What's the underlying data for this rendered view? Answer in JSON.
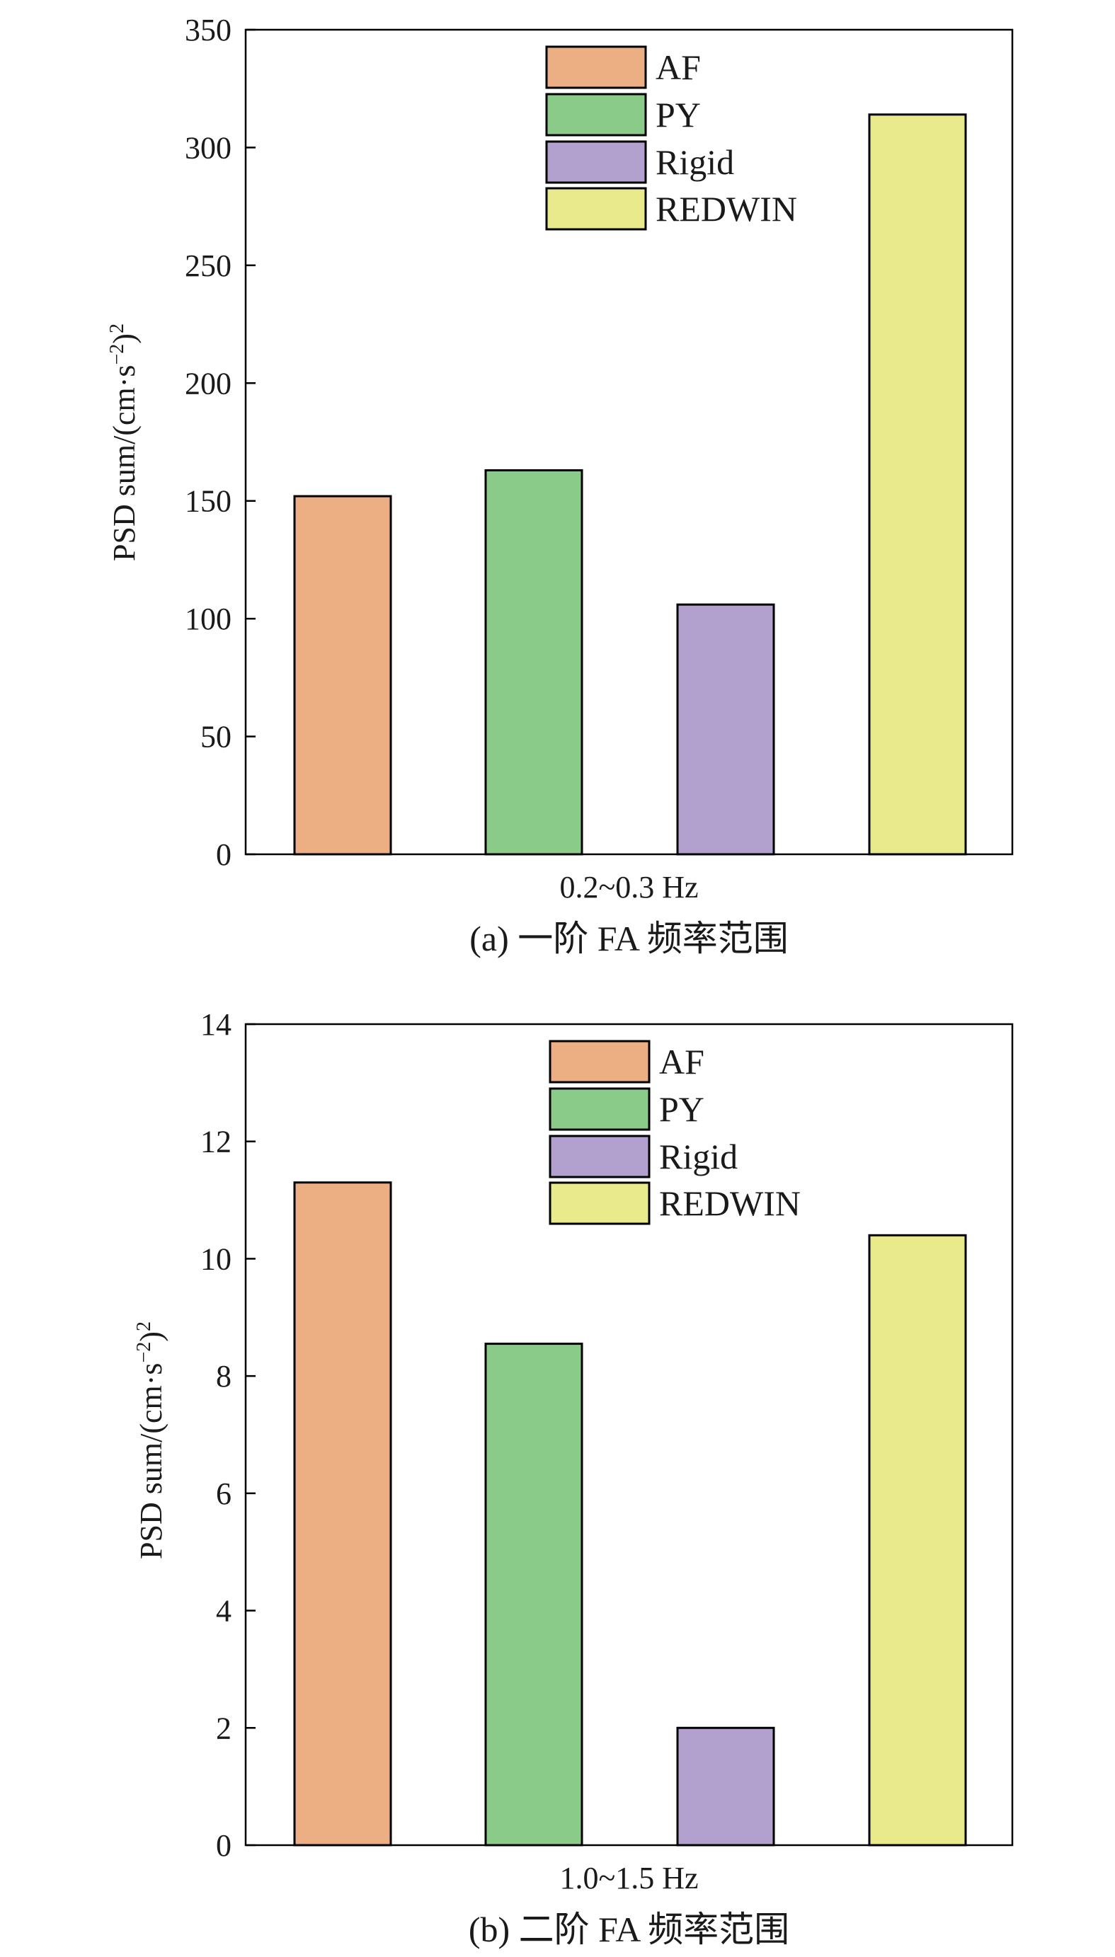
{
  "chart_data": [
    {
      "type": "bar",
      "panel_id": "a",
      "categories": [
        "AF",
        "PY",
        "Rigid",
        "REDWIN"
      ],
      "values": [
        152,
        163,
        106,
        314
      ],
      "colors": [
        "#ECAF84",
        "#8ACB8A",
        "#B2A0CE",
        "#E8EA8C"
      ],
      "xlabel": "0.2~0.3 Hz",
      "ylabel_main": "PSD sum/(cm·s",
      "ylabel_sup1": "−2",
      "ylabel_close": ")",
      "ylabel_sup2": "2",
      "ylim": [
        0,
        350
      ],
      "yticks": [
        "0",
        "50",
        "100",
        "150",
        "200",
        "250",
        "300",
        "350"
      ],
      "legend": [
        "AF",
        "PY",
        "Rigid",
        "REDWIN"
      ],
      "legend_position": "top-center",
      "grid": false,
      "caption": "(a) 一阶 FA 频率范围"
    },
    {
      "type": "bar",
      "panel_id": "b",
      "categories": [
        "AF",
        "PY",
        "Rigid",
        "REDWIN"
      ],
      "values": [
        11.3,
        8.55,
        2.0,
        10.4
      ],
      "colors": [
        "#ECAF84",
        "#8ACB8A",
        "#B2A0CE",
        "#E8EA8C"
      ],
      "xlabel": "1.0~1.5 Hz",
      "ylabel_main": "PSD sum/(cm·s",
      "ylabel_sup1": "−2",
      "ylabel_close": ")",
      "ylabel_sup2": "2",
      "ylim": [
        0,
        14
      ],
      "yticks": [
        "0",
        "2",
        "4",
        "6",
        "8",
        "10",
        "12",
        "14"
      ],
      "legend": [
        "AF",
        "PY",
        "Rigid",
        "REDWIN"
      ],
      "legend_position": "top-center",
      "grid": false,
      "caption": "(b) 二阶 FA 频率范围"
    }
  ]
}
